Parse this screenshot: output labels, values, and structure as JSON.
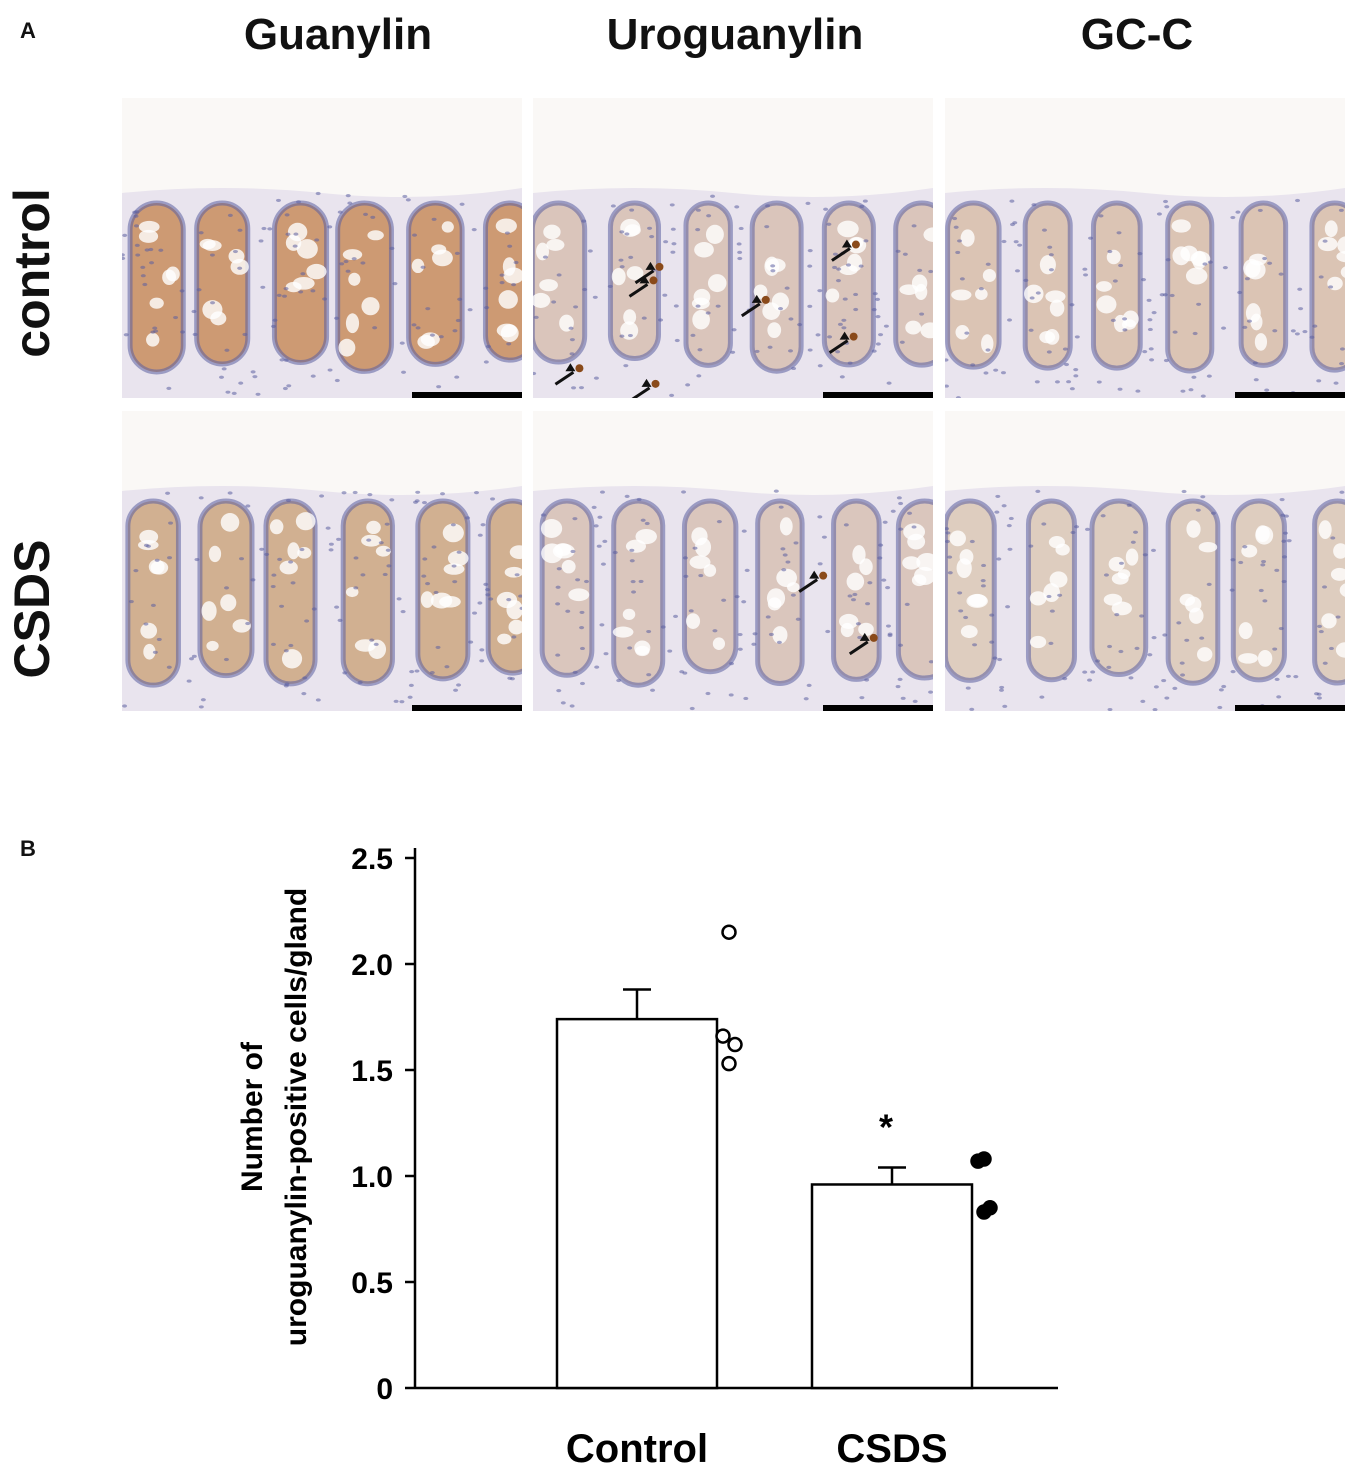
{
  "panel_a": {
    "letter": "A",
    "columns": [
      "Guanylin",
      "Uroguanylin",
      "GC-C"
    ],
    "rows": [
      "control",
      "CSDS"
    ],
    "micrographs": [
      {
        "row": 0,
        "col": 0,
        "name": "micrograph-control-guanylin",
        "stain": "#c07a3e",
        "stain_strength": 0.75
      },
      {
        "row": 0,
        "col": 1,
        "name": "micrograph-control-uroguanylin",
        "stain": "#b8804a",
        "stain_strength": 0.1,
        "arrows": 7
      },
      {
        "row": 0,
        "col": 2,
        "name": "micrograph-control-gcc",
        "stain": "#caa070",
        "stain_strength": 0.35
      },
      {
        "row": 1,
        "col": 0,
        "name": "micrograph-csds-guanylin",
        "stain": "#c08a4e",
        "stain_strength": 0.55
      },
      {
        "row": 1,
        "col": 1,
        "name": "micrograph-csds-uroguanylin",
        "stain": "#b8804a",
        "stain_strength": 0.08,
        "arrows": 2
      },
      {
        "row": 1,
        "col": 2,
        "name": "micrograph-csds-gcc",
        "stain": "#d0ae82",
        "stain_strength": 0.3
      }
    ],
    "colors": {
      "nuclei": "#5b5fa0",
      "tissue": "#e9e4ee",
      "arrow": "#111111",
      "scale_bar": "#000000"
    }
  },
  "panel_b": {
    "letter": "B"
  },
  "chart_data": {
    "type": "bar",
    "categories": [
      "Control",
      "CSDS"
    ],
    "values": [
      1.74,
      0.96
    ],
    "error": [
      0.14,
      0.08
    ],
    "points": [
      {
        "category": "Control",
        "values": [
          2.15,
          1.66,
          1.62,
          1.53
        ],
        "fill": "open"
      },
      {
        "category": "CSDS",
        "values": [
          1.08,
          1.07,
          0.85,
          0.83
        ],
        "fill": "filled"
      }
    ],
    "ylabel_line1": "Number of",
    "ylabel_line2": "uroguanylin-positive cells/gland",
    "yticks": [
      "0",
      "0.5",
      "1.0",
      "1.5",
      "2.0",
      "2.5"
    ],
    "ylim": [
      0,
      2.5
    ],
    "significance": [
      {
        "category": "CSDS",
        "label": "*"
      }
    ],
    "grid": false,
    "bar_fill": "#ffffff",
    "bar_stroke": "#000000"
  }
}
